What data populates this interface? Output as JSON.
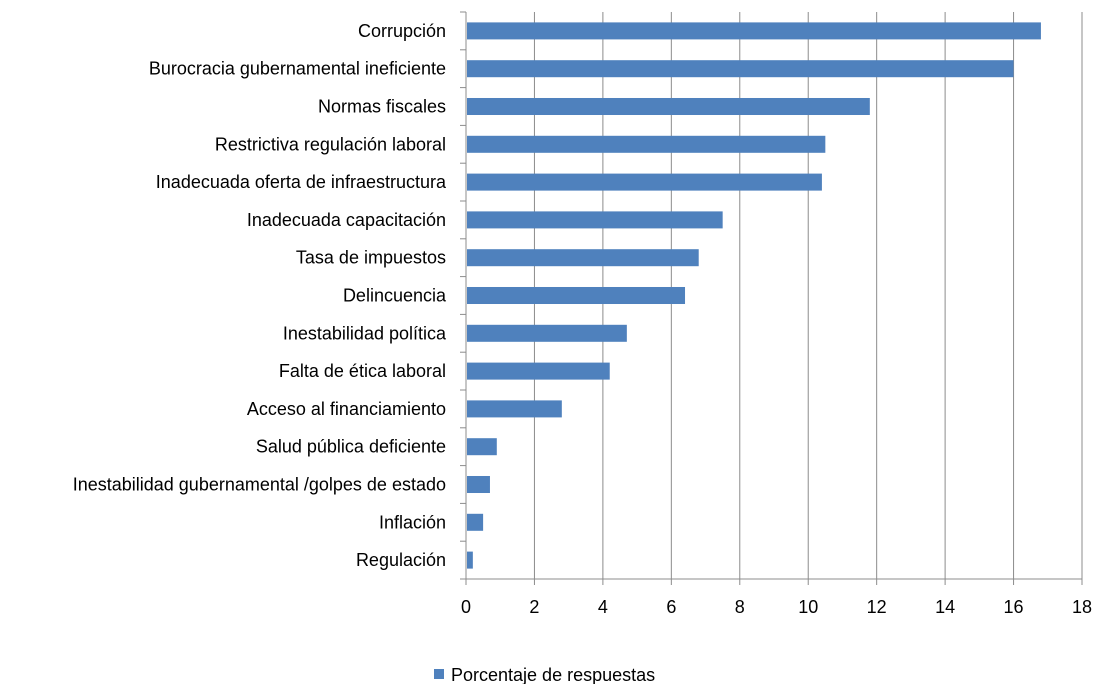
{
  "chart_data": {
    "type": "bar",
    "orientation": "horizontal",
    "categories": [
      "Corrupción",
      "Burocracia gubernamental ineficiente",
      "Normas fiscales",
      "Restrictiva regulación laboral",
      "Inadecuada oferta de infraestructura",
      "Inadecuada capacitación",
      "Tasa de impuestos",
      "Delincuencia",
      "Inestabilidad política",
      "Falta de ética laboral",
      "Acceso al financiamiento",
      "Salud pública deficiente",
      "Inestabilidad gubernamental /golpes de estado",
      "Inflación",
      "Regulación"
    ],
    "series": [
      {
        "name": "Porcentaje de respuestas",
        "color": "#4F81BD",
        "values": [
          16.8,
          16.0,
          11.8,
          10.5,
          10.4,
          7.5,
          6.8,
          6.4,
          4.7,
          4.2,
          2.8,
          0.9,
          0.7,
          0.5,
          0.2
        ]
      }
    ],
    "xlim": [
      0,
      18
    ],
    "xticks": [
      "0",
      "2",
      "4",
      "6",
      "8",
      "10",
      "12",
      "14",
      "16",
      "18"
    ],
    "grid": "vertical",
    "legend_position": "bottom",
    "title": "",
    "xlabel": "",
    "ylabel": ""
  },
  "legend": {
    "label": "Porcentaje de respuestas"
  }
}
